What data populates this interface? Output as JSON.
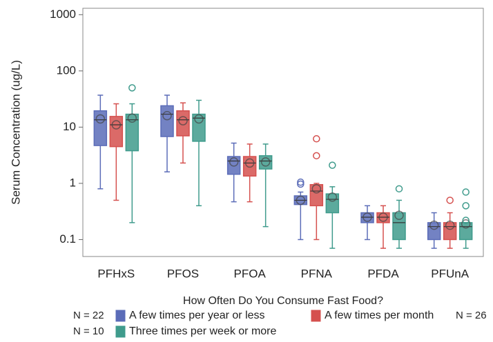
{
  "chart_data": {
    "type": "box",
    "log_scale": true,
    "y_label": "Serum Concentration (ug/L)",
    "x_label": "How Often Do You Consume Fast Food?",
    "categories": [
      "PFHxS",
      "PFOS",
      "PFOA",
      "PFNA",
      "PFDA",
      "PFUnA"
    ],
    "ylim": [
      0.05,
      1300
    ],
    "yticks": [
      0.1,
      1,
      10,
      100,
      1000
    ],
    "series": [
      {
        "name": "A few times per year or less",
        "n": "N = 22",
        "color": "#5b6cb8",
        "low": [
          0.8,
          1.6,
          0.47,
          0.1,
          0.1,
          0.07
        ],
        "q1": [
          4.7,
          6.8,
          1.45,
          0.42,
          0.2,
          0.1
        ],
        "median": [
          13.5,
          17,
          2.5,
          0.5,
          0.25,
          0.17
        ],
        "q3": [
          19.5,
          24,
          3,
          0.6,
          0.3,
          0.2
        ],
        "high": [
          37,
          37,
          5.2,
          0.7,
          0.4,
          0.3
        ],
        "mean": [
          14,
          16,
          2.4,
          0.5,
          0.25,
          0.18
        ],
        "outliers": [
          [],
          [],
          [],
          [
            1.05,
            0.97
          ],
          [],
          []
        ]
      },
      {
        "name": "A few times per month",
        "n": "N = 26",
        "color": "#d5504e",
        "low": [
          0.5,
          2.3,
          0.47,
          0.1,
          0.07,
          0.07
        ],
        "q1": [
          4.5,
          7,
          1.35,
          0.4,
          0.2,
          0.1
        ],
        "median": [
          11,
          13.5,
          2.3,
          0.73,
          0.25,
          0.17
        ],
        "q3": [
          15.5,
          19.5,
          3,
          0.95,
          0.3,
          0.2
        ],
        "high": [
          26,
          27,
          5,
          1.0,
          0.4,
          0.3
        ],
        "mean": [
          11,
          13,
          2.3,
          0.8,
          0.25,
          0.18
        ],
        "outliers": [
          [],
          [],
          [],
          [
            6.2,
            3.1
          ],
          [],
          [
            0.5
          ]
        ]
      },
      {
        "name": "Three times per week or more",
        "n": "N = 10",
        "color": "#3f9b8c",
        "low": [
          0.2,
          0.4,
          0.17,
          0.07,
          0.07,
          0.07
        ],
        "q1": [
          3.8,
          5.6,
          1.8,
          0.3,
          0.1,
          0.1
        ],
        "median": [
          13.5,
          14.5,
          2.5,
          0.52,
          0.2,
          0.17
        ],
        "q3": [
          17,
          17,
          3.1,
          0.65,
          0.3,
          0.2
        ],
        "high": [
          26,
          30,
          5,
          0.87,
          0.5,
          0.2
        ],
        "mean": [
          14.5,
          14,
          2.4,
          0.57,
          0.27,
          0.19
        ],
        "outliers": [
          [
            50
          ],
          [],
          [],
          [
            2.1
          ],
          [
            0.8
          ],
          [
            0.7,
            0.4,
            0.22
          ]
        ]
      }
    ]
  }
}
